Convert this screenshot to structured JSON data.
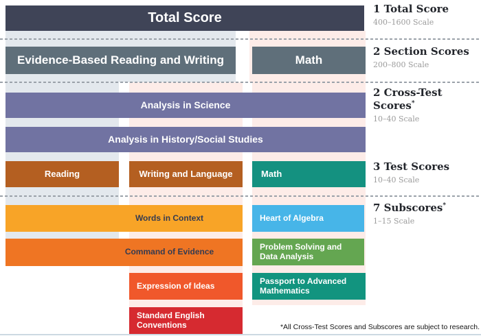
{
  "diagram": {
    "bars": {
      "total_score": "Total Score",
      "ebrw_section": "Evidence-Based Reading and Writing",
      "math_section": "Math",
      "analysis_science": "Analysis in Science",
      "analysis_history": "Analysis in History/Social Studies",
      "reading_test": "Reading",
      "writing_test": "Writing and Language",
      "math_test": "Math",
      "words_in_context": "Words in Context",
      "command_of_evidence": "Command of Evidence",
      "expression_of_ideas": "Expression of Ideas",
      "standard_english_conventions": "Standard English Conventions",
      "heart_of_algebra": "Heart of Algebra",
      "problem_solving_data_analysis": "Problem Solving and Data Analysis",
      "passport_advanced_mathematics": "Passport to Advanced Mathematics"
    },
    "levels": [
      {
        "title": "1 Total Score",
        "mark": "",
        "scale": "400–1600 Scale"
      },
      {
        "title": "2 Section Scores",
        "mark": "",
        "scale": "200–800 Scale"
      },
      {
        "title": "2 Cross-Test Scores",
        "mark": "*",
        "scale": "10–40 Scale"
      },
      {
        "title": "3 Test Scores",
        "mark": "",
        "scale": "10–40 Scale"
      },
      {
        "title": "7 Subscores",
        "mark": "*",
        "scale": "1–15 Scale"
      }
    ],
    "footnote": "*All Cross-Test Scores and Subscores are subject to research.",
    "colors": {
      "total_bar": "#3f4457",
      "section_bar": "#5f6f7a",
      "cross_test_bar": "#7173a2",
      "reading_bar": "#b45f21",
      "writing_bar": "#b45f21",
      "math_test_bar": "#149180",
      "words_in_context_bar": "#f8a427",
      "command_of_evidence_bar": "#ef7523",
      "expression_of_ideas_bar": "#f0582b",
      "standard_english_bar": "#d62a30",
      "heart_of_algebra_bar": "#47b5e8",
      "problem_solving_bar": "#64a651",
      "passport_bar": "#12947f",
      "column_bg_gray": "#e3e8ed",
      "column_bg_pink": "#fdece8"
    }
  }
}
